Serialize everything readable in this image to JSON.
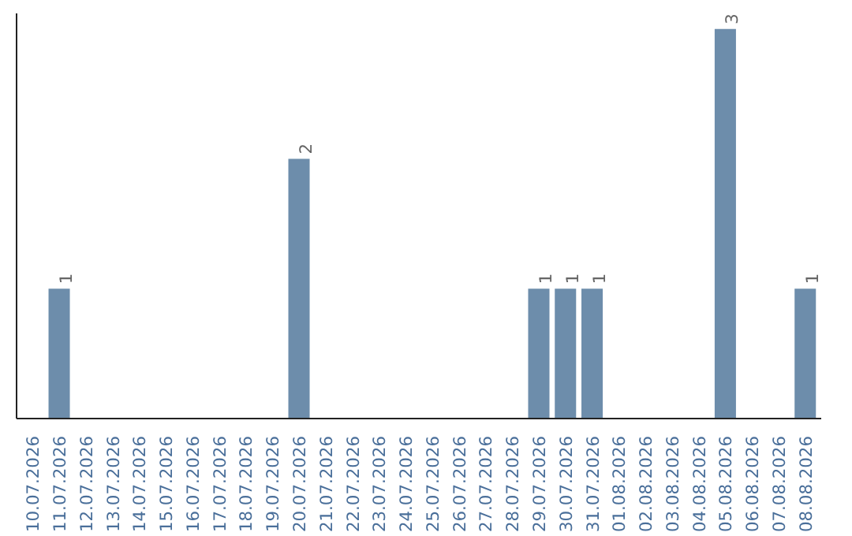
{
  "chart_data": {
    "type": "bar",
    "categories": [
      "10.07.2026",
      "11.07.2026",
      "12.07.2026",
      "13.07.2026",
      "14.07.2026",
      "15.07.2026",
      "16.07.2026",
      "17.07.2026",
      "18.07.2026",
      "19.07.2026",
      "20.07.2026",
      "21.07.2026",
      "22.07.2026",
      "23.07.2026",
      "24.07.2026",
      "25.07.2026",
      "26.07.2026",
      "27.07.2026",
      "28.07.2026",
      "29.07.2026",
      "30.07.2026",
      "31.07.2026",
      "01.08.2026",
      "02.08.2026",
      "03.08.2026",
      "04.08.2026",
      "05.08.2026",
      "06.08.2026",
      "07.08.2026",
      "08.08.2026"
    ],
    "values": [
      0,
      1,
      0,
      0,
      0,
      0,
      0,
      0,
      0,
      0,
      2,
      0,
      0,
      0,
      0,
      0,
      0,
      0,
      0,
      1,
      1,
      1,
      0,
      0,
      0,
      0,
      3,
      0,
      0,
      1
    ],
    "value_labels": [
      null,
      "1",
      null,
      null,
      null,
      null,
      null,
      null,
      null,
      null,
      "2",
      null,
      null,
      null,
      null,
      null,
      null,
      null,
      null,
      "1",
      "1",
      "1",
      null,
      null,
      null,
      null,
      "3",
      null,
      null,
      "1"
    ],
    "color": "#6d8dab",
    "grid": false,
    "tick_labels": "x"
  }
}
